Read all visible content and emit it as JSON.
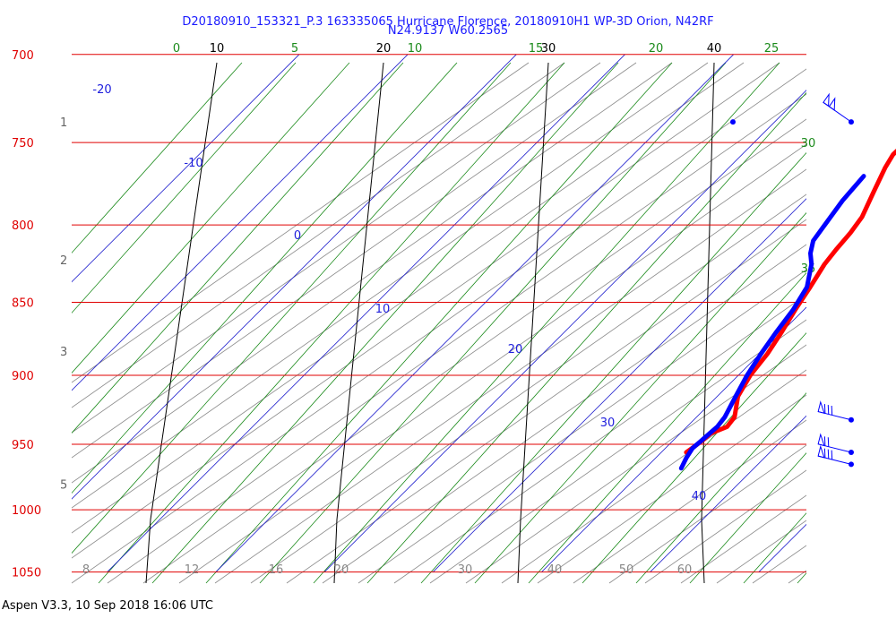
{
  "chart_data": {
    "type": "skew-t",
    "title": "D20180910_153321_P.3 163335065 Hurricane Florence, 20180910H1 WP-3D Orion, N42RF",
    "subtitle": "N24.9137 W60.2565",
    "footer": "Aspen V3.3, 10 Sep 2018  16:06 UTC",
    "pressure_range_hpa": [
      1050,
      700
    ],
    "pressure_levels": [
      {
        "p": 700,
        "label": "700"
      },
      {
        "p": 750,
        "label": "750"
      },
      {
        "p": 800,
        "label": "800"
      },
      {
        "p": 850,
        "label": "850"
      },
      {
        "p": 900,
        "label": "900"
      },
      {
        "p": 950,
        "label": "950"
      },
      {
        "p": 1000,
        "label": "1000"
      },
      {
        "p": 1050,
        "label": "1050"
      }
    ],
    "height_labels_km": [
      {
        "p": 738,
        "label": "1"
      },
      {
        "p": 822,
        "label": "2"
      },
      {
        "p": 883,
        "label": "3"
      },
      {
        "p": 980,
        "label": "5"
      }
    ],
    "isotherms_c": [
      {
        "t": -20,
        "label": "-20"
      },
      {
        "t": -10,
        "label": "-10"
      },
      {
        "t": 0,
        "label": "0"
      },
      {
        "t": 10,
        "label": "10"
      },
      {
        "t": 20,
        "label": "20"
      },
      {
        "t": 30,
        "label": "30"
      },
      {
        "t": 40,
        "label": "40"
      }
    ],
    "mixing_ratio_top_labels": [
      {
        "w": 10,
        "label": "10"
      },
      {
        "w": 20,
        "label": "20"
      },
      {
        "w": 30,
        "label": "30"
      },
      {
        "w": 40,
        "label": "40"
      }
    ],
    "mixing_ratio_bottom_labels": [
      {
        "w": 8,
        "label": "8"
      },
      {
        "w": 12,
        "label": "12"
      },
      {
        "w": 16,
        "label": "16"
      },
      {
        "w": 20,
        "label": "20"
      },
      {
        "w": 30,
        "label": "30"
      },
      {
        "w": 40,
        "label": "40"
      },
      {
        "w": 50,
        "label": "50"
      },
      {
        "w": 60,
        "label": "60"
      }
    ],
    "moist_adiabat_labels": [
      {
        "label": "0"
      },
      {
        "label": "5"
      },
      {
        "label": "10"
      },
      {
        "label": "15"
      },
      {
        "label": "20"
      },
      {
        "label": "25"
      },
      {
        "label": "30"
      },
      {
        "label": "35"
      }
    ],
    "temperature_profile": [
      {
        "p": 750,
        "t": 14.0
      },
      {
        "p": 757,
        "t": 13.9
      },
      {
        "p": 765,
        "t": 14.4
      },
      {
        "p": 780,
        "t": 15.6
      },
      {
        "p": 795,
        "t": 16.8
      },
      {
        "p": 805,
        "t": 17.2
      },
      {
        "p": 815,
        "t": 17.4
      },
      {
        "p": 825,
        "t": 17.7
      },
      {
        "p": 840,
        "t": 18.5
      },
      {
        "p": 855,
        "t": 19.2
      },
      {
        "p": 870,
        "t": 20.0
      },
      {
        "p": 885,
        "t": 20.7
      },
      {
        "p": 900,
        "t": 21.1
      },
      {
        "p": 915,
        "t": 21.9
      },
      {
        "p": 930,
        "t": 23.5
      },
      {
        "p": 937,
        "t": 23.7
      },
      {
        "p": 942,
        "t": 22.8
      },
      {
        "p": 947,
        "t": 22.7
      },
      {
        "p": 952,
        "t": 22.5
      },
      {
        "p": 956,
        "t": 22.3
      }
    ],
    "dewpoint_profile": [
      {
        "p": 770,
        "t": 13.2
      },
      {
        "p": 785,
        "t": 13.5
      },
      {
        "p": 800,
        "t": 14.1
      },
      {
        "p": 810,
        "t": 14.5
      },
      {
        "p": 818,
        "t": 15.4
      },
      {
        "p": 825,
        "t": 16.5
      },
      {
        "p": 840,
        "t": 18.2
      },
      {
        "p": 855,
        "t": 19.0
      },
      {
        "p": 870,
        "t": 19.5
      },
      {
        "p": 885,
        "t": 20.1
      },
      {
        "p": 900,
        "t": 20.8
      },
      {
        "p": 915,
        "t": 21.7
      },
      {
        "p": 930,
        "t": 22.6
      },
      {
        "p": 937,
        "t": 22.8
      },
      {
        "p": 942,
        "t": 22.7
      },
      {
        "p": 948,
        "t": 22.6
      },
      {
        "p": 953,
        "t": 22.5
      },
      {
        "p": 960,
        "t": 22.8
      },
      {
        "p": 968,
        "t": 23.3
      }
    ],
    "wind_barbs": [
      {
        "p": 738,
        "flags": 2,
        "full": 0,
        "half": 0
      },
      {
        "p": 932,
        "flags": 1,
        "full": 3,
        "half": 0
      },
      {
        "p": 956,
        "flags": 1,
        "full": 2,
        "half": 0
      },
      {
        "p": 965,
        "flags": 1,
        "full": 3,
        "half": 0
      }
    ],
    "colors": {
      "isobar": "#e00000",
      "isotherm": "#1a1acc",
      "dry_adiabat": "#8a8a8a",
      "moist_adiabat": "#1a8a1a",
      "mixing_ratio": "#000000",
      "temperature": "#ff0000",
      "dewpoint": "#0000ff",
      "pressure_label": "#e00000",
      "height_label": "#666666",
      "bottom_label": "#888888",
      "moist_label": "#1a8a1a",
      "isotherm_label": "#2020dd"
    }
  }
}
